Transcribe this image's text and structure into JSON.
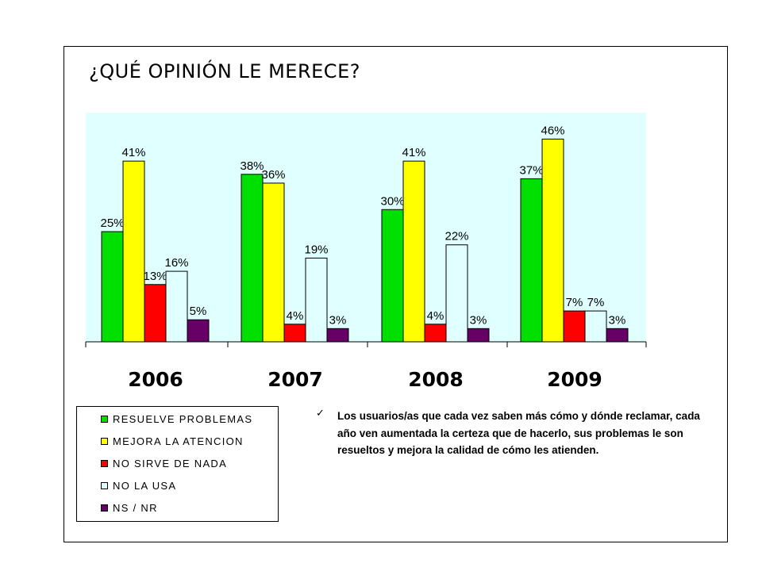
{
  "title": "¿QUÉ OPINIÓN LE MERECE?",
  "chart_data": {
    "type": "bar",
    "title": "¿QUÉ OPINIÓN LE MERECE?",
    "categories": [
      "2006",
      "2007",
      "2008",
      "2009"
    ],
    "series": [
      {
        "name": "RESUELVE PROBLEMAS",
        "color": "#00e000",
        "values": [
          25,
          38,
          30,
          37
        ],
        "labels": [
          "25%",
          "38%",
          "30%",
          "37%"
        ]
      },
      {
        "name": "MEJORA LA ATENCION",
        "color": "#ffff00",
        "values": [
          41,
          36,
          41,
          46
        ],
        "labels": [
          "41%",
          "36%",
          "41%",
          "46%"
        ]
      },
      {
        "name": "NO SIRVE DE NADA",
        "color": "#ff0000",
        "values": [
          13,
          4,
          4,
          7
        ],
        "labels": [
          "13%",
          "4%",
          "4%",
          "7%"
        ]
      },
      {
        "name": "NO LA USA",
        "color": "#e0ffff",
        "values": [
          16,
          19,
          22,
          7
        ],
        "labels": [
          "16%",
          "19%",
          "22%",
          "7%"
        ]
      },
      {
        "name": "NS / NR",
        "color": "#660066",
        "values": [
          5,
          3,
          3,
          3
        ],
        "labels": [
          "5%",
          "3%",
          "3%",
          "3%"
        ]
      }
    ],
    "ylim": [
      0,
      52
    ],
    "grid": false,
    "legend_position": "bottom-left",
    "plot_background": "#e0ffff"
  },
  "legend": {
    "items": [
      {
        "label": "RESUELVE PROBLEMAS",
        "color": "#00e000"
      },
      {
        "label": "MEJORA LA ATENCION",
        "color": "#ffff00"
      },
      {
        "label": "NO SIRVE DE NADA",
        "color": "#ff0000"
      },
      {
        "label": "NO LA USA",
        "color": "#e0ffff"
      },
      {
        "label": "NS / NR",
        "color": "#660066"
      }
    ]
  },
  "note": {
    "icon": "check-icon",
    "text": "Los usuarios/as que cada vez saben más cómo y dónde reclamar, cada año ven aumentada la certeza que de hacerlo, sus problemas le son resueltos y mejora la calidad de cómo les atienden."
  }
}
